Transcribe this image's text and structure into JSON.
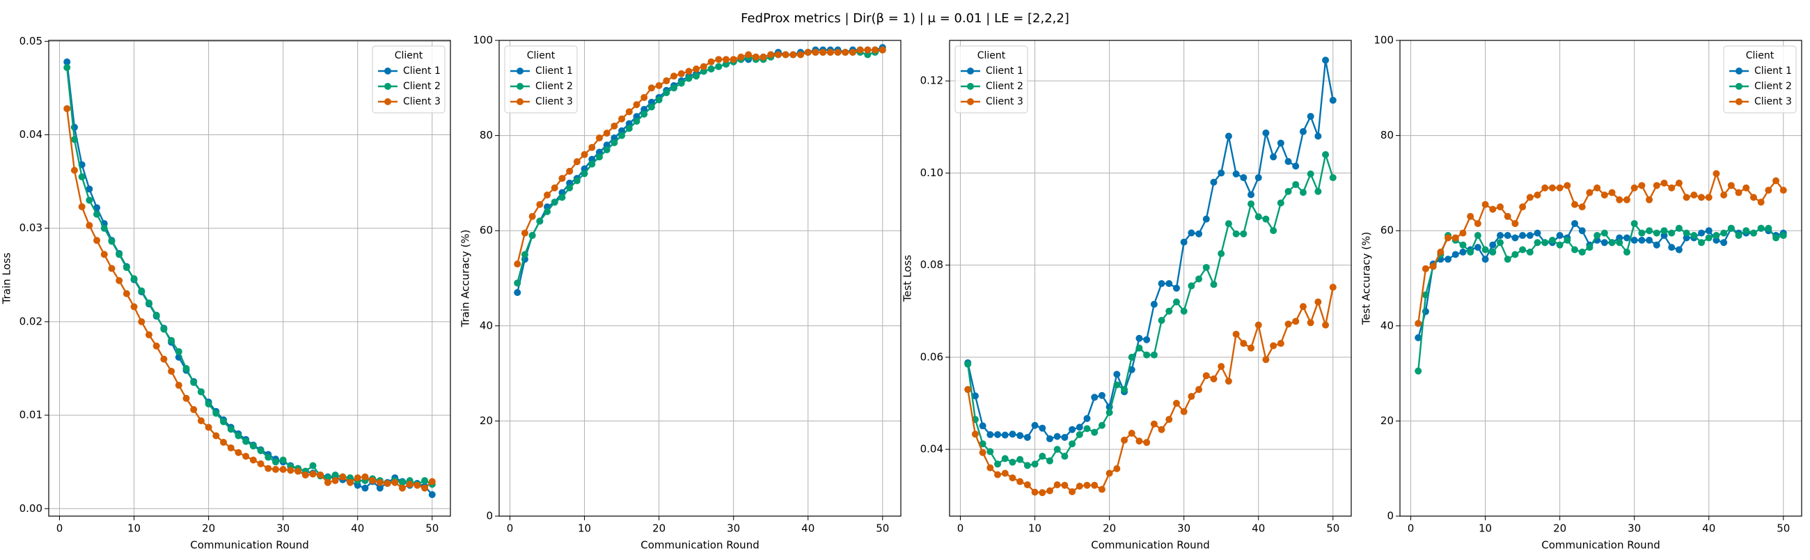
{
  "title": "FedProx metrics | Dir(β = 1) | μ = 0.01 | LE = [2,2,2]",
  "chart_data": [
    {
      "type": "line",
      "xlabel": "Communication Round",
      "ylabel": "Train Loss",
      "grid": true,
      "legend_title": "Client",
      "legend": "upper right",
      "x": [
        1,
        2,
        3,
        4,
        5,
        6,
        7,
        8,
        9,
        10,
        11,
        12,
        13,
        14,
        15,
        16,
        17,
        18,
        19,
        20,
        21,
        22,
        23,
        24,
        25,
        26,
        27,
        28,
        29,
        30,
        31,
        32,
        33,
        34,
        35,
        36,
        37,
        38,
        39,
        40,
        41,
        42,
        43,
        44,
        45,
        46,
        47,
        48,
        49,
        50
      ],
      "xlim": [
        -1.45,
        52.45
      ],
      "xticks": [
        0,
        10,
        20,
        30,
        40,
        50
      ],
      "ylim": [
        -0.0008,
        0.0501
      ],
      "yticks": [
        {
          "value": 0,
          "label": "0.00"
        },
        {
          "value": 0.01,
          "label": "0.01"
        },
        {
          "value": 0.02,
          "label": "0.02"
        },
        {
          "value": 0.03,
          "label": "0.03"
        },
        {
          "value": 0.04,
          "label": "0.04"
        },
        {
          "value": 0.05,
          "label": "0.05"
        }
      ],
      "series": [
        {
          "name": "Client 1",
          "color": "#0072B2",
          "values": [
            0.0478,
            0.0408,
            0.0368,
            0.0342,
            0.0322,
            0.0305,
            0.0287,
            0.0273,
            0.0259,
            0.0245,
            0.0232,
            0.0219,
            0.0206,
            0.0193,
            0.0178,
            0.0162,
            0.0148,
            0.0136,
            0.0125,
            0.0114,
            0.0104,
            0.0095,
            0.0087,
            0.008,
            0.0074,
            0.0068,
            0.0063,
            0.0058,
            0.0053,
            0.005,
            0.0046,
            0.0043,
            0.004,
            0.0038,
            0.0036,
            0.0034,
            0.0033,
            0.0031,
            0.0029,
            0.0025,
            0.0022,
            0.0029,
            0.0022,
            0.0028,
            0.0033,
            0.0029,
            0.0025,
            0.0027,
            0.0024,
            0.0015
          ]
        },
        {
          "name": "Client 2",
          "color": "#009E73",
          "values": [
            0.0472,
            0.0395,
            0.0355,
            0.033,
            0.0315,
            0.03,
            0.0286,
            0.0272,
            0.0258,
            0.0246,
            0.0233,
            0.022,
            0.0207,
            0.0192,
            0.018,
            0.0168,
            0.015,
            0.0135,
            0.0125,
            0.0112,
            0.0102,
            0.0093,
            0.0085,
            0.0078,
            0.0072,
            0.0067,
            0.0062,
            0.0055,
            0.005,
            0.0052,
            0.0045,
            0.0043,
            0.004,
            0.0046,
            0.0035,
            0.0033,
            0.0036,
            0.0034,
            0.0033,
            0.003,
            0.003,
            0.0032,
            0.003,
            0.0027,
            0.003,
            0.0028,
            0.003,
            0.0026,
            0.003,
            0.0026
          ]
        },
        {
          "name": "Client 3",
          "color": "#D55E00",
          "values": [
            0.0428,
            0.0362,
            0.0323,
            0.0303,
            0.0287,
            0.0272,
            0.0257,
            0.0244,
            0.023,
            0.0216,
            0.02,
            0.0186,
            0.0174,
            0.016,
            0.0147,
            0.0132,
            0.0118,
            0.0106,
            0.0094,
            0.0087,
            0.0078,
            0.0071,
            0.0065,
            0.006,
            0.0056,
            0.0052,
            0.0048,
            0.0043,
            0.0042,
            0.0042,
            0.0041,
            0.004,
            0.0036,
            0.0037,
            0.0036,
            0.0028,
            0.003,
            0.0034,
            0.0028,
            0.0033,
            0.0034,
            0.003,
            0.0028,
            0.0027,
            0.0028,
            0.0022,
            0.0026,
            0.0025,
            0.0022,
            0.0029
          ]
        }
      ]
    },
    {
      "type": "line",
      "xlabel": "Communication Round",
      "ylabel": "Train Accuracy (%)",
      "grid": true,
      "legend_title": "Client",
      "legend": "upper left",
      "x": [
        1,
        2,
        3,
        4,
        5,
        6,
        7,
        8,
        9,
        10,
        11,
        12,
        13,
        14,
        15,
        16,
        17,
        18,
        19,
        20,
        21,
        22,
        23,
        24,
        25,
        26,
        27,
        28,
        29,
        30,
        31,
        32,
        33,
        34,
        35,
        36,
        37,
        38,
        39,
        40,
        41,
        42,
        43,
        44,
        45,
        46,
        47,
        48,
        49,
        50
      ],
      "xlim": [
        -1.45,
        52.45
      ],
      "xticks": [
        0,
        10,
        20,
        30,
        40,
        50
      ],
      "ylim": [
        0,
        100
      ],
      "yticks": [
        0,
        20,
        40,
        60,
        80,
        100
      ],
      "series": [
        {
          "name": "Client 1",
          "color": "#0072B2",
          "values": [
            47,
            54,
            59,
            62,
            65,
            66,
            68,
            70,
            71,
            73,
            75,
            76.5,
            78,
            79.5,
            81,
            82.5,
            84,
            85.5,
            87,
            88,
            89.5,
            90.5,
            91.5,
            92.5,
            93,
            93.5,
            94,
            94.5,
            95,
            95.5,
            96,
            96,
            96.5,
            96.5,
            97,
            97.5,
            97,
            97,
            97.5,
            97.5,
            98,
            98,
            98,
            98,
            97.5,
            98,
            98,
            98,
            98,
            98.5
          ]
        },
        {
          "name": "Client 2",
          "color": "#009E73",
          "values": [
            49,
            55,
            59,
            62,
            64,
            66,
            67,
            69,
            70.5,
            72,
            74,
            75.5,
            77,
            78.5,
            80,
            81.5,
            83,
            84.5,
            86,
            87.5,
            89,
            90,
            91,
            92,
            92.5,
            93.5,
            94,
            94.5,
            95,
            95.5,
            96,
            96.5,
            96,
            96,
            96.5,
            97,
            97,
            97,
            97,
            97.5,
            97.5,
            97.5,
            97.5,
            97.5,
            97.5,
            97.5,
            97.5,
            97,
            97.5,
            98
          ]
        },
        {
          "name": "Client 3",
          "color": "#D55E00",
          "values": [
            53,
            59.5,
            63,
            65.5,
            67.5,
            69,
            71,
            72.5,
            74.5,
            76,
            77.5,
            79.5,
            80.5,
            82,
            83.5,
            85,
            86.5,
            88,
            90,
            90.5,
            91.5,
            92.5,
            93,
            93.5,
            94,
            94.5,
            95.5,
            96,
            96,
            96,
            96.5,
            97,
            96.5,
            96.5,
            97,
            97,
            97,
            97,
            97,
            97.5,
            97.5,
            97.5,
            97.5,
            97.5,
            97.5,
            97.5,
            98,
            98,
            98,
            98
          ]
        }
      ]
    },
    {
      "type": "line",
      "xlabel": "Communication Round",
      "ylabel": "Test Loss",
      "grid": true,
      "legend_title": "Client",
      "legend": "upper left",
      "x": [
        1,
        2,
        3,
        4,
        5,
        6,
        7,
        8,
        9,
        10,
        11,
        12,
        13,
        14,
        15,
        16,
        17,
        18,
        19,
        20,
        21,
        22,
        23,
        24,
        25,
        26,
        27,
        28,
        29,
        30,
        31,
        32,
        33,
        34,
        35,
        36,
        37,
        38,
        39,
        40,
        41,
        42,
        43,
        44,
        45,
        46,
        47,
        48,
        49,
        50
      ],
      "xlim": [
        -1.45,
        52.45
      ],
      "xticks": [
        0,
        10,
        20,
        30,
        40,
        50
      ],
      "ylim": [
        0.0255,
        0.1288
      ],
      "yticks": [
        {
          "value": 0.04,
          "label": "0.04"
        },
        {
          "value": 0.06,
          "label": "0.06"
        },
        {
          "value": 0.08,
          "label": "0.08"
        },
        {
          "value": 0.1,
          "label": "0.10"
        },
        {
          "value": 0.12,
          "label": "0.12"
        }
      ],
      "series": [
        {
          "name": "Client 1",
          "color": "#0072B2",
          "values": [
            0.0588,
            0.0516,
            0.0451,
            0.0432,
            0.0432,
            0.0431,
            0.0433,
            0.043,
            0.0426,
            0.0452,
            0.0446,
            0.0423,
            0.0428,
            0.0426,
            0.0443,
            0.0448,
            0.0467,
            0.0513,
            0.0517,
            0.0492,
            0.0563,
            0.0525,
            0.0573,
            0.0641,
            0.0638,
            0.0715,
            0.076,
            0.076,
            0.075,
            0.085,
            0.087,
            0.0868,
            0.09,
            0.098,
            0.1,
            0.108,
            0.0998,
            0.099,
            0.0953,
            0.099,
            0.1087,
            0.1035,
            0.1065,
            0.1025,
            0.1015,
            0.109,
            0.1123,
            0.108,
            0.1245,
            0.1158
          ]
        },
        {
          "name": "Client 2",
          "color": "#009E73",
          "values": [
            0.0585,
            0.0465,
            0.0412,
            0.0395,
            0.0368,
            0.038,
            0.0372,
            0.0378,
            0.0365,
            0.0368,
            0.0385,
            0.0375,
            0.04,
            0.0385,
            0.0412,
            0.0432,
            0.0445,
            0.0437,
            0.0452,
            0.048,
            0.054,
            0.053,
            0.06,
            0.062,
            0.0605,
            0.0605,
            0.068,
            0.07,
            0.072,
            0.07,
            0.0755,
            0.077,
            0.0795,
            0.0758,
            0.0825,
            0.089,
            0.0868,
            0.0868,
            0.0933,
            0.0905,
            0.09,
            0.0875,
            0.0935,
            0.096,
            0.0975,
            0.0958,
            0.0998,
            0.096,
            0.104,
            0.099
          ]
        },
        {
          "name": "Client 3",
          "color": "#D55E00",
          "values": [
            0.053,
            0.0433,
            0.0393,
            0.036,
            0.0345,
            0.0348,
            0.0338,
            0.033,
            0.0323,
            0.0307,
            0.0306,
            0.031,
            0.0323,
            0.0322,
            0.0308,
            0.032,
            0.0322,
            0.0322,
            0.0313,
            0.0348,
            0.0358,
            0.042,
            0.0435,
            0.0418,
            0.0415,
            0.0455,
            0.0443,
            0.0465,
            0.05,
            0.0482,
            0.0515,
            0.053,
            0.056,
            0.0553,
            0.058,
            0.0548,
            0.065,
            0.063,
            0.062,
            0.067,
            0.0595,
            0.0625,
            0.063,
            0.0672,
            0.0678,
            0.071,
            0.0675,
            0.072,
            0.067,
            0.0752
          ]
        }
      ]
    },
    {
      "type": "line",
      "xlabel": "Communication Round",
      "ylabel": "Test Accuracy (%)",
      "grid": true,
      "legend_title": "Client",
      "legend": "upper right",
      "x": [
        1,
        2,
        3,
        4,
        5,
        6,
        7,
        8,
        9,
        10,
        11,
        12,
        13,
        14,
        15,
        16,
        17,
        18,
        19,
        20,
        21,
        22,
        23,
        24,
        25,
        26,
        27,
        28,
        29,
        30,
        31,
        32,
        33,
        34,
        35,
        36,
        37,
        38,
        39,
        40,
        41,
        42,
        43,
        44,
        45,
        46,
        47,
        48,
        49,
        50
      ],
      "xlim": [
        -1.45,
        52.45
      ],
      "xticks": [
        0,
        10,
        20,
        30,
        40,
        50
      ],
      "ylim": [
        0,
        100
      ],
      "yticks": [
        0,
        20,
        40,
        60,
        80,
        100
      ],
      "series": [
        {
          "name": "Client 1",
          "color": "#0072B2",
          "values": [
            37.5,
            43,
            53,
            54,
            54,
            55,
            55.5,
            56,
            56.5,
            54,
            57,
            59,
            59,
            58.5,
            59,
            59,
            59.5,
            57.5,
            57.5,
            59,
            58.5,
            61.5,
            60,
            57,
            58,
            57.5,
            57.5,
            58.5,
            58.5,
            58,
            58,
            58,
            57,
            59,
            56.5,
            56,
            58.5,
            58.5,
            59.5,
            60,
            58,
            57.5,
            60.5,
            59.5,
            59.5,
            59.5,
            60.5,
            60,
            59,
            59.5
          ]
        },
        {
          "name": "Client 2",
          "color": "#009E73",
          "values": [
            30.5,
            46.5,
            52.5,
            55,
            59,
            58,
            57,
            55.5,
            59,
            56,
            55.5,
            57.5,
            54,
            55,
            56,
            55.5,
            57.5,
            57.5,
            58,
            57,
            58,
            56,
            55.5,
            56.5,
            59,
            59.5,
            57.5,
            57.5,
            55.5,
            61.5,
            59.5,
            60,
            59.5,
            60,
            59.5,
            60.5,
            59.5,
            59,
            57.5,
            58.5,
            59,
            59.5,
            60.5,
            59,
            60,
            59.5,
            60.5,
            60.5,
            58.5,
            59
          ]
        },
        {
          "name": "Client 3",
          "color": "#D55E00",
          "values": [
            40.5,
            52,
            52.5,
            55.5,
            58.5,
            58.5,
            59.5,
            63,
            61.5,
            65.5,
            64.5,
            65,
            63,
            61.5,
            65,
            67,
            67.5,
            69,
            69,
            69,
            69.5,
            65.5,
            65,
            68,
            69,
            67.5,
            68,
            66.5,
            66.5,
            69,
            69.5,
            66.5,
            69.5,
            70,
            69,
            70,
            67,
            67.5,
            67,
            67,
            72,
            67.5,
            69.5,
            68,
            69,
            67,
            66,
            68.5,
            70.5,
            68.5
          ]
        }
      ]
    }
  ]
}
